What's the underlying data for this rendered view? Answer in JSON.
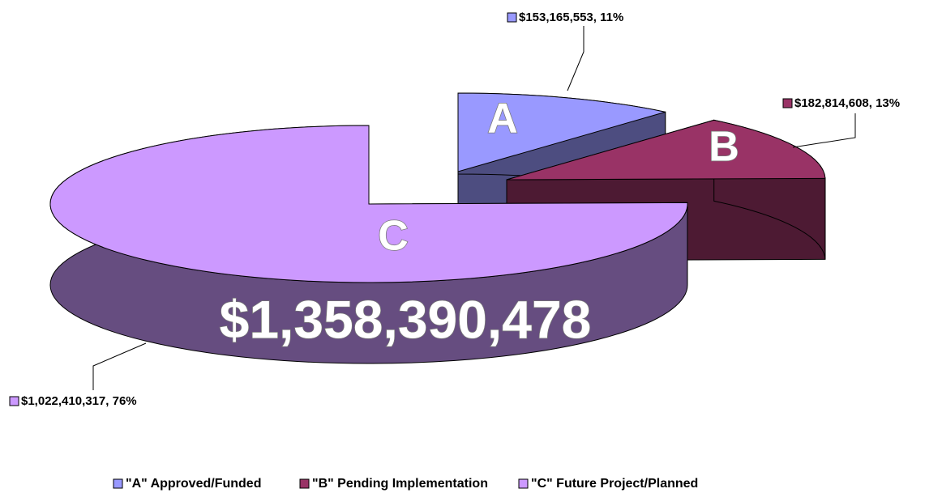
{
  "chart_data": {
    "type": "pie",
    "categories": [
      "\"A\" Approved/Funded",
      "\"B\" Pending Implementation",
      "\"C\" Future Project/Planned"
    ],
    "values": [
      153165553,
      182814608,
      1022410317
    ],
    "value_labels": [
      "$153,165,553, 11%",
      "$182,814,608, 13%",
      "$1,022,410,317, 76%"
    ],
    "colors": [
      "#9999ff",
      "#993366",
      "#cc99ff"
    ],
    "slice_labels": [
      "A",
      "B",
      "C"
    ],
    "annotations": [
      "$1,358,390,478"
    ],
    "legend": "bottom"
  }
}
